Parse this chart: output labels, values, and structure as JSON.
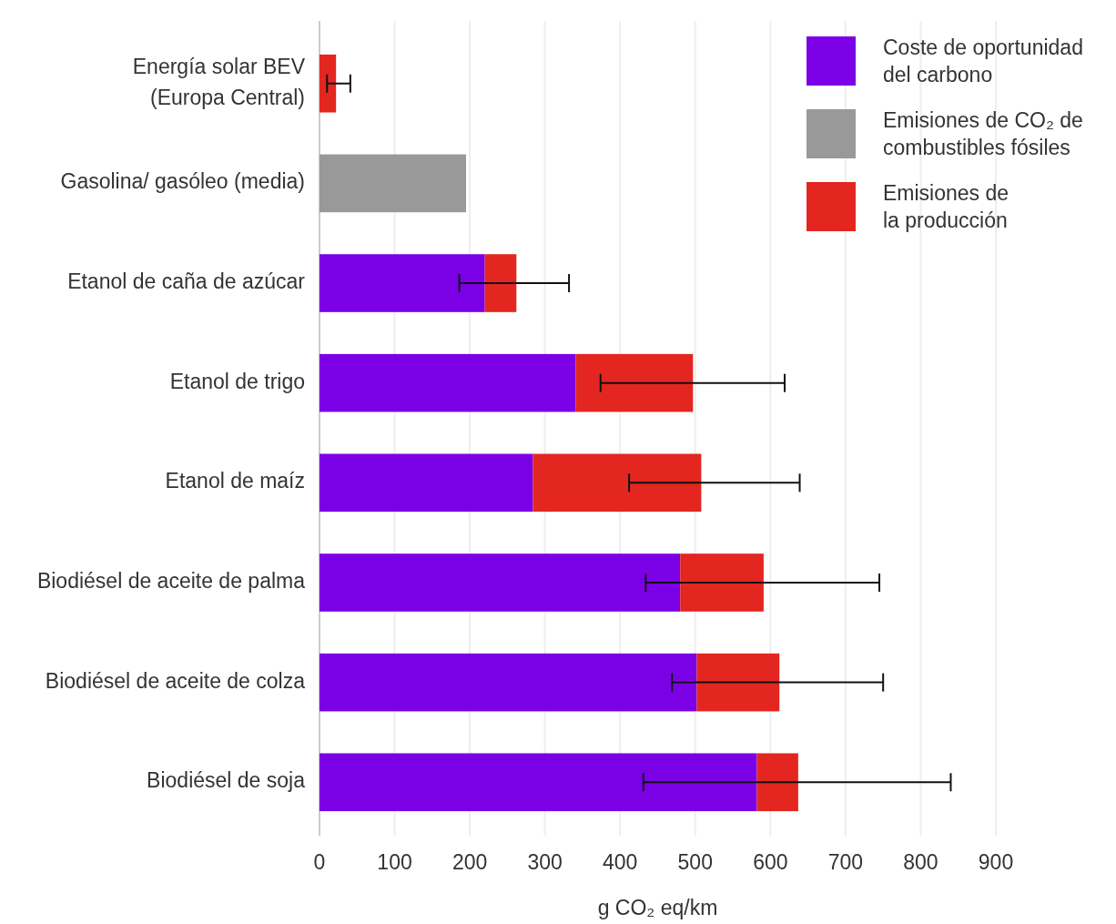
{
  "chart_data": {
    "type": "bar",
    "orientation": "horizontal",
    "stacked": true,
    "xlabel": "g CO₂ eq/km",
    "categories": [
      "Energía solar BEV (Europa Central)",
      "Gasolina/ gasóleo (media)",
      "Etanol de caña de azúcar",
      "Etanol de trigo",
      "Etanol de maíz",
      "Biodiésel de aceite de palma",
      "Biodiésel de aceite de colza",
      "Biodiésel de soja"
    ],
    "series": [
      {
        "name": "Coste de oportunidad del carbono",
        "color": "#7b00e6",
        "values": [
          null,
          null,
          220,
          341,
          284,
          480,
          502,
          582
        ]
      },
      {
        "name": "Emisiones de CO₂ de combustibles fósiles",
        "color": "#999999",
        "values": [
          null,
          195,
          null,
          null,
          null,
          null,
          null,
          null
        ]
      },
      {
        "name": "Emisiones de la producción",
        "color": "#e3261f",
        "values": [
          22,
          null,
          42,
          156,
          224,
          111,
          110,
          55
        ],
        "errors": [
          [
            10,
            41
          ],
          null,
          [
            186,
            332
          ],
          [
            374,
            619
          ],
          [
            412,
            639
          ],
          [
            434,
            745
          ],
          [
            469,
            750
          ],
          [
            431,
            840
          ]
        ]
      }
    ],
    "xlim": [
      0,
      900
    ],
    "xticks": [
      0,
      100,
      200,
      300,
      400,
      500,
      600,
      700,
      800,
      900
    ],
    "grid": "x",
    "legend": "top right"
  }
}
